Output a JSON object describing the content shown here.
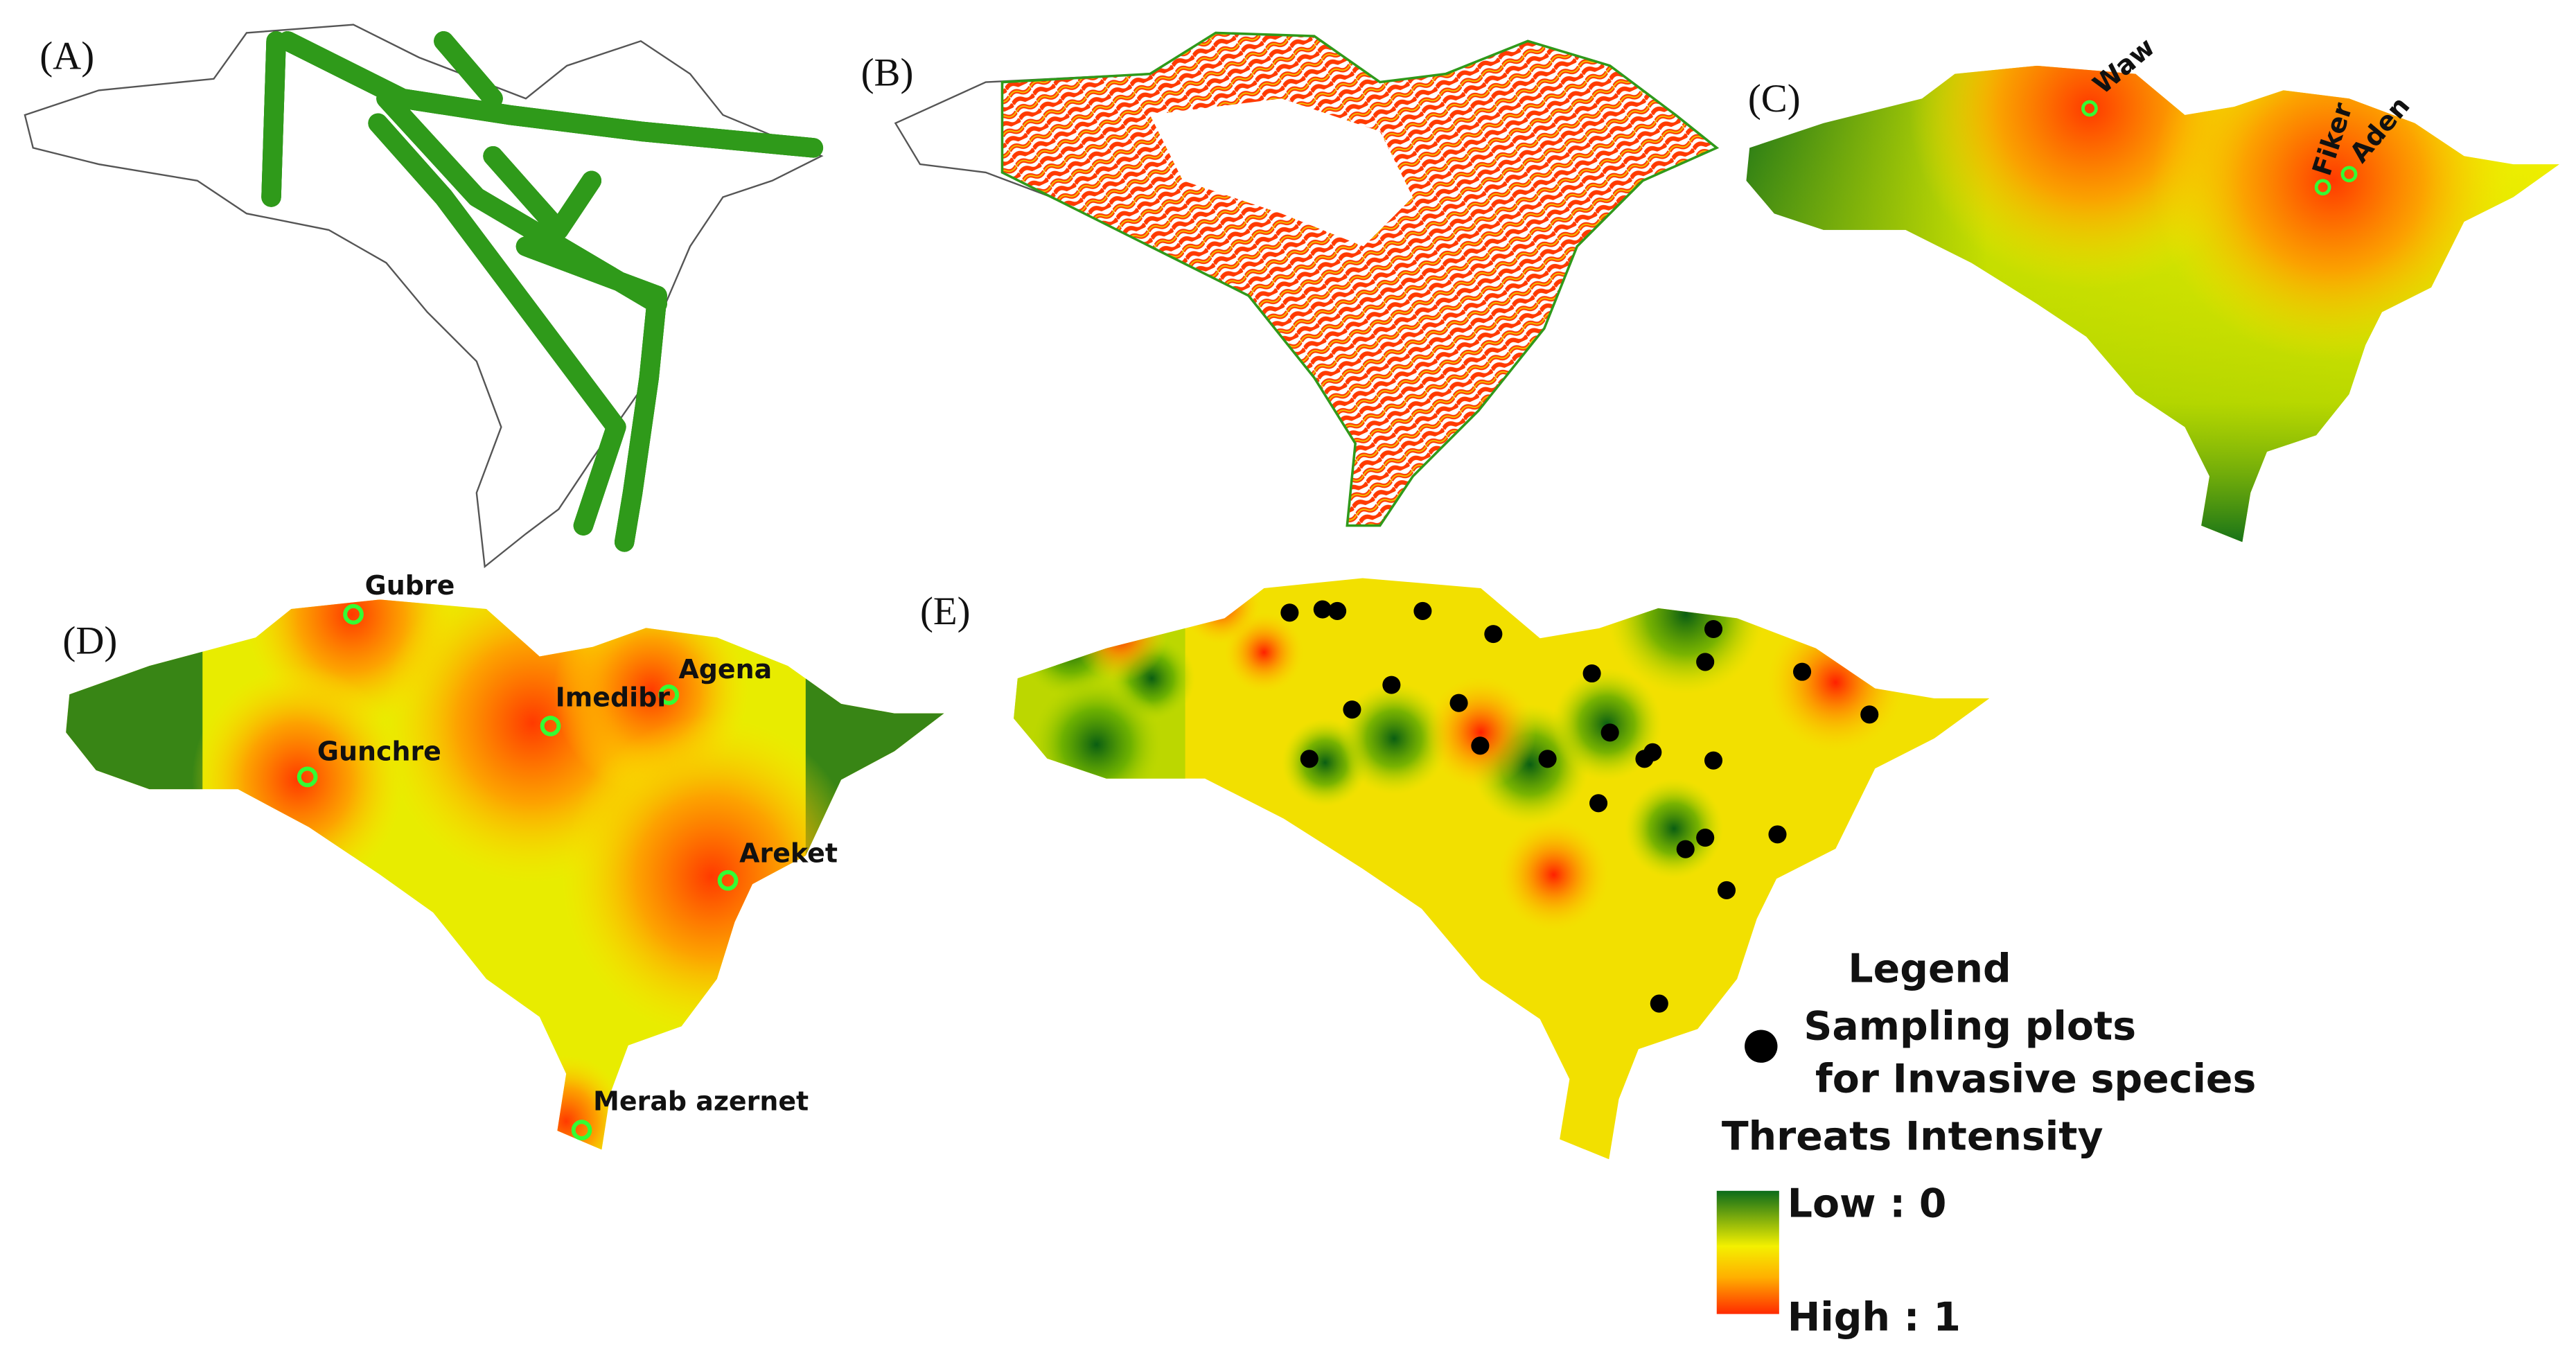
{
  "panels": [
    {
      "label": "(A)"
    },
    {
      "label": "(B)"
    },
    {
      "label": "(C)",
      "places": [
        "Waw",
        "Fiker",
        "Aden"
      ]
    },
    {
      "label": "(D)",
      "places": [
        "Gubre",
        "Imedibr",
        "Agena",
        "Gunchre",
        "Areket",
        "Merab azernet"
      ]
    },
    {
      "label": "(E)"
    }
  ],
  "legend": {
    "title": "Legend",
    "items": [
      "Sampling plots",
      "for Invasive species"
    ],
    "threat_title": "Threats Intensity",
    "low": "Low : 0",
    "high": "High : 1"
  }
}
